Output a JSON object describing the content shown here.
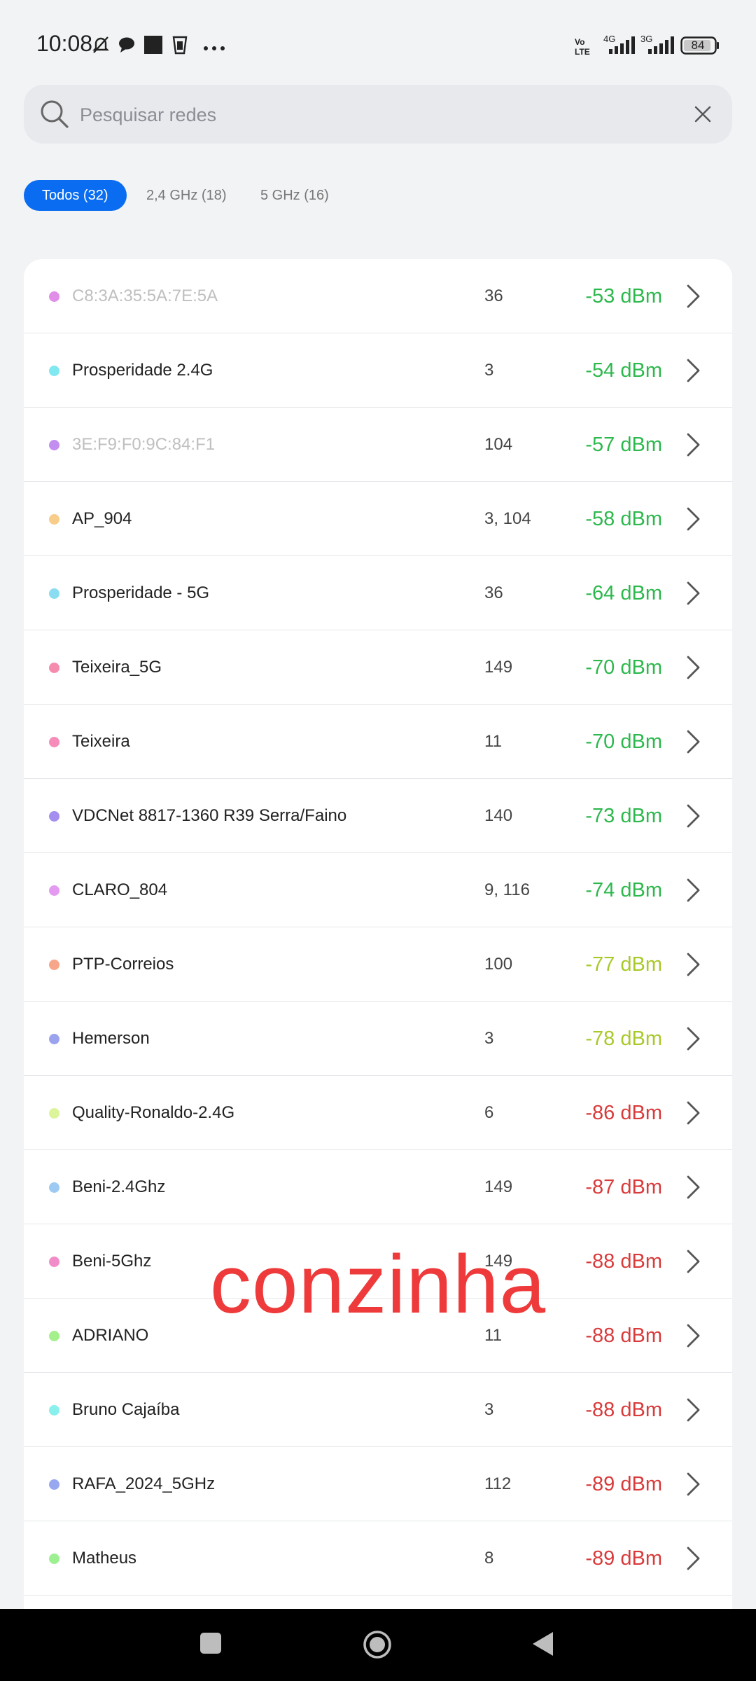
{
  "status_bar": {
    "time": "10:08",
    "battery": "84",
    "network_labels": [
      "4G",
      "3G"
    ],
    "volte": "Vo LTE",
    "icons": [
      "mute-icon",
      "chat-icon",
      "app-square-icon",
      "cup-icon",
      "more-dots-icon"
    ]
  },
  "search": {
    "placeholder": "Pesquisar redes",
    "value": ""
  },
  "tabs": [
    {
      "label": "Todos (32)",
      "active": true
    },
    {
      "label": "2,4 GHz (18)",
      "active": false
    },
    {
      "label": "5 GHz (16)",
      "active": false
    }
  ],
  "networks": [
    {
      "name": "C8:3A:35:5A:7E:5A",
      "channel": "36",
      "signal": "-53 dBm",
      "dot_color": "#e08ee8",
      "signal_color": "#2db84d",
      "muted": true
    },
    {
      "name": "Prosperidade 2.4G",
      "channel": "3",
      "signal": "-54 dBm",
      "dot_color": "#7fe8f0",
      "signal_color": "#2db84d",
      "muted": false
    },
    {
      "name": "3E:F9:F0:9C:84:F1",
      "channel": "104",
      "signal": "-57 dBm",
      "dot_color": "#c28ef0",
      "signal_color": "#2db84d",
      "muted": true
    },
    {
      "name": "AP_904",
      "channel": "3, 104",
      "signal": "-58 dBm",
      "dot_color": "#f8cd8a",
      "signal_color": "#2db84d",
      "muted": false
    },
    {
      "name": "Prosperidade - 5G",
      "channel": "36",
      "signal": "-64 dBm",
      "dot_color": "#8adcf0",
      "signal_color": "#2db84d",
      "muted": false
    },
    {
      "name": "Teixeira_5G",
      "channel": "149",
      "signal": "-70 dBm",
      "dot_color": "#f58cae",
      "signal_color": "#2db84d",
      "muted": false
    },
    {
      "name": "Teixeira",
      "channel": "11",
      "signal": "-70 dBm",
      "dot_color": "#f58cba",
      "signal_color": "#2db84d",
      "muted": false
    },
    {
      "name": "VDCNet 8817-1360 R39 Serra/Faino",
      "channel": "140",
      "signal": "-73 dBm",
      "dot_color": "#a48ef0",
      "signal_color": "#2db84d",
      "muted": false
    },
    {
      "name": "CLARO_804",
      "channel": "9, 116",
      "signal": "-74 dBm",
      "dot_color": "#e39af0",
      "signal_color": "#2db84d",
      "muted": false
    },
    {
      "name": "PTP-Correios",
      "channel": "100",
      "signal": "-77 dBm",
      "dot_color": "#f8a68a",
      "signal_color": "#a8c92a",
      "muted": false
    },
    {
      "name": "Hemerson",
      "channel": "3",
      "signal": "-78 dBm",
      "dot_color": "#9ba3ef",
      "signal_color": "#a8c92a",
      "muted": false
    },
    {
      "name": "Quality-Ronaldo-2.4G",
      "channel": "6",
      "signal": "-86 dBm",
      "dot_color": "#dcf59a",
      "signal_color": "#d93a3a",
      "muted": false
    },
    {
      "name": "Beni-2.4Ghz",
      "channel": "149",
      "signal": "-87 dBm",
      "dot_color": "#9ccaf2",
      "signal_color": "#d93a3a",
      "muted": false
    },
    {
      "name": "Beni-5Ghz",
      "channel": "149",
      "signal": "-88 dBm",
      "dot_color": "#f28cc8",
      "signal_color": "#d93a3a",
      "muted": false
    },
    {
      "name": "ADRIANO",
      "channel": "11",
      "signal": "-88 dBm",
      "dot_color": "#a4f08c",
      "signal_color": "#d93a3a",
      "muted": false
    },
    {
      "name": "Bruno Cajaíba",
      "channel": "3",
      "signal": "-88 dBm",
      "dot_color": "#8af0ec",
      "signal_color": "#d93a3a",
      "muted": false
    },
    {
      "name": "RAFA_2024_5GHz",
      "channel": "112",
      "signal": "-89 dBm",
      "dot_color": "#98a8f0",
      "signal_color": "#d93a3a",
      "muted": false
    },
    {
      "name": "Matheus",
      "channel": "8",
      "signal": "-89 dBm",
      "dot_color": "#9cf092",
      "signal_color": "#d93a3a",
      "muted": false
    }
  ],
  "watermark": "conzinha",
  "nav": {
    "icons": [
      "recents-square-icon",
      "home-circle-icon",
      "back-triangle-icon"
    ]
  }
}
